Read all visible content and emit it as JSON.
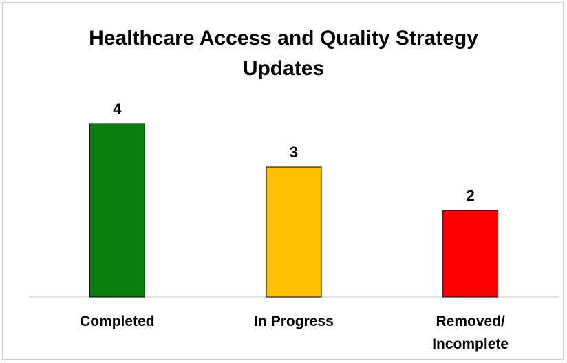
{
  "chart_data": {
    "type": "bar",
    "title": "Healthcare Access and Quality Strategy Updates",
    "categories": [
      "Completed",
      "In Progress",
      "Removed/ Incomplete"
    ],
    "values": [
      4,
      3,
      2
    ],
    "colors": [
      "#0a7d0a",
      "#ffc000",
      "#ff0000"
    ],
    "ylim": [
      0,
      5
    ]
  }
}
